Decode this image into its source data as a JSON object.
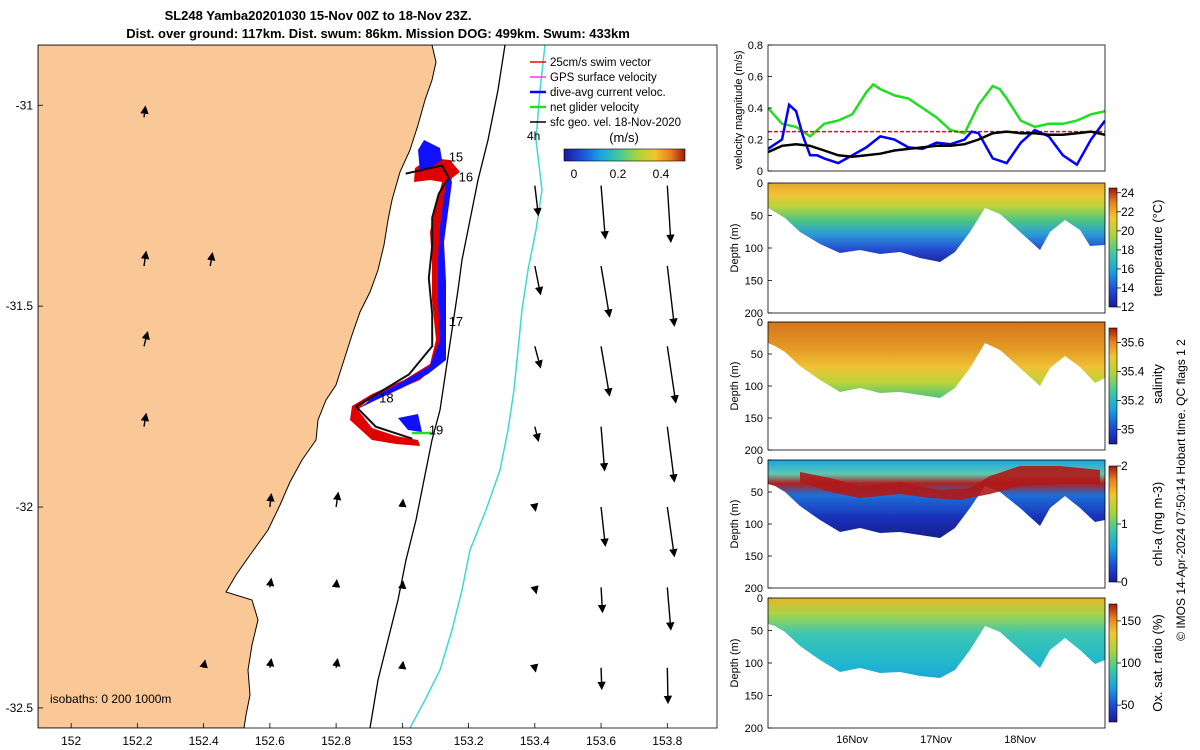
{
  "header": {
    "line1": "SL248 Yamba20201030 15-Nov 00Z to 18-Nov 23Z.",
    "line2": "Dist. over ground: 117km. Dist. swum: 86km. Mission DOG: 499km. Swum: 433km"
  },
  "credit": "© IMOS 14-Apr-2024 07:50:14 Hobart time. QC flags 1  2",
  "colors": {
    "land": "#fac896",
    "cyan_isobath": "#3dd9d9",
    "red": "#ff0000",
    "blue": "#0000ff",
    "green": "#22dd22",
    "black": "#000000"
  },
  "chart_data": [
    {
      "type": "scatter",
      "panel": "map",
      "xlim": [
        151.9,
        153.95
      ],
      "ylim": [
        -32.55,
        -30.85
      ],
      "xticks": [
        "152",
        "152.2",
        "152.4",
        "152.6",
        "152.8",
        "153",
        "153.2",
        "153.4",
        "153.6",
        "153.8"
      ],
      "yticks": [
        "-31",
        "-31.5",
        "-32",
        "-32.5"
      ],
      "legend": {
        "items": [
          "25cm/s swim vector",
          "GPS surface velocity",
          "dive-avg current veloc.",
          "net glider velocity",
          "sfc geo. vel. 18-Nov-2020"
        ],
        "extra": "4h"
      },
      "colorbar": {
        "label": "(m/s)",
        "ticks": [
          "0",
          "0.2",
          "0.4"
        ]
      },
      "day_labels": [
        {
          "text": "15",
          "x": 153.14,
          "y": -31.14
        },
        {
          "text": "16",
          "x": 153.17,
          "y": -31.19
        },
        {
          "text": "17",
          "x": 153.14,
          "y": -31.55
        },
        {
          "text": "18",
          "x": 152.93,
          "y": -31.74
        },
        {
          "text": "19",
          "x": 153.08,
          "y": -31.82
        }
      ],
      "isobath_label": "isobaths: 0   200  1000m",
      "track": [
        [
          153.01,
          -31.17
        ],
        [
          153.12,
          -31.15
        ],
        [
          153.14,
          -31.18
        ],
        [
          153.11,
          -31.22
        ],
        [
          153.09,
          -31.28
        ],
        [
          153.09,
          -31.35
        ],
        [
          153.08,
          -31.43
        ],
        [
          153.09,
          -31.52
        ],
        [
          153.09,
          -31.6
        ],
        [
          153.02,
          -31.67
        ],
        [
          152.94,
          -31.71
        ],
        [
          152.86,
          -31.75
        ],
        [
          152.92,
          -31.8
        ],
        [
          153.03,
          -31.83
        ]
      ],
      "geo_vectors": [
        {
          "x": 152.22,
          "y": -31.03,
          "u": 0.02,
          "v": 0.15
        },
        {
          "x": 153.4,
          "y": -31.2,
          "u": 0.05,
          "v": -0.42
        },
        {
          "x": 153.6,
          "y": -31.2,
          "u": 0.06,
          "v": -0.75
        },
        {
          "x": 153.8,
          "y": -31.2,
          "u": 0.05,
          "v": -0.8
        },
        {
          "x": 152.22,
          "y": -31.4,
          "u": 0.03,
          "v": 0.2
        },
        {
          "x": 152.42,
          "y": -31.4,
          "u": 0.03,
          "v": 0.18
        },
        {
          "x": 153.4,
          "y": -31.4,
          "u": 0.08,
          "v": -0.4
        },
        {
          "x": 153.6,
          "y": -31.4,
          "u": 0.12,
          "v": -0.72
        },
        {
          "x": 153.8,
          "y": -31.4,
          "u": 0.1,
          "v": -0.85
        },
        {
          "x": 152.22,
          "y": -31.6,
          "u": 0.05,
          "v": 0.2
        },
        {
          "x": 153.4,
          "y": -31.6,
          "u": 0.08,
          "v": -0.3
        },
        {
          "x": 153.6,
          "y": -31.6,
          "u": 0.12,
          "v": -0.7
        },
        {
          "x": 153.8,
          "y": -31.6,
          "u": 0.12,
          "v": -0.8
        },
        {
          "x": 152.22,
          "y": -31.8,
          "u": 0.03,
          "v": 0.18
        },
        {
          "x": 153.4,
          "y": -31.8,
          "u": 0.05,
          "v": -0.2
        },
        {
          "x": 153.6,
          "y": -31.8,
          "u": 0.05,
          "v": -0.62
        },
        {
          "x": 153.8,
          "y": -31.8,
          "u": 0.1,
          "v": -0.78
        },
        {
          "x": 152.6,
          "y": -32.0,
          "u": 0.02,
          "v": 0.18
        },
        {
          "x": 152.8,
          "y": -32.0,
          "u": 0.03,
          "v": 0.2
        },
        {
          "x": 153.0,
          "y": -32.0,
          "u": 0.01,
          "v": 0.1
        },
        {
          "x": 153.4,
          "y": -32.0,
          "u": 0.01,
          "v": -0.05
        },
        {
          "x": 153.6,
          "y": -32.0,
          "u": 0.06,
          "v": -0.55
        },
        {
          "x": 153.8,
          "y": -32.0,
          "u": 0.1,
          "v": -0.7
        },
        {
          "x": 152.6,
          "y": -32.2,
          "u": 0.02,
          "v": 0.12
        },
        {
          "x": 152.8,
          "y": -32.2,
          "u": 0.01,
          "v": 0.1
        },
        {
          "x": 153.0,
          "y": -32.2,
          "u": 0.01,
          "v": 0.08
        },
        {
          "x": 153.4,
          "y": -32.2,
          "u": 0.02,
          "v": -0.08
        },
        {
          "x": 153.6,
          "y": -32.2,
          "u": 0.02,
          "v": -0.35
        },
        {
          "x": 153.8,
          "y": -32.2,
          "u": 0.05,
          "v": -0.6
        },
        {
          "x": 152.4,
          "y": -32.4,
          "u": 0.02,
          "v": 0.1
        },
        {
          "x": 152.6,
          "y": -32.4,
          "u": 0.02,
          "v": 0.12
        },
        {
          "x": 152.8,
          "y": -32.4,
          "u": 0.02,
          "v": 0.12
        },
        {
          "x": 153.0,
          "y": -32.4,
          "u": 0.01,
          "v": 0.08
        },
        {
          "x": 153.4,
          "y": -32.4,
          "u": 0.01,
          "v": -0.05
        },
        {
          "x": 153.6,
          "y": -32.4,
          "u": 0.01,
          "v": -0.3
        },
        {
          "x": 153.8,
          "y": -32.4,
          "u": 0.01,
          "v": -0.5
        }
      ]
    },
    {
      "type": "line",
      "panel": "velocity",
      "ylabel": "velocity magnitude (m/s)",
      "ylim": [
        0,
        0.8
      ],
      "yticks": [
        "0",
        "0.2",
        "0.4",
        "0.6",
        "0.8"
      ],
      "xlim": [
        0,
        96
      ],
      "series": [
        {
          "color": "#22dd22",
          "x": [
            0,
            4,
            8,
            12,
            16,
            20,
            24,
            28,
            30,
            32,
            36,
            40,
            44,
            48,
            50,
            52,
            56,
            60,
            64,
            66,
            68,
            72,
            76,
            80,
            84,
            88,
            92,
            96
          ],
          "y": [
            0.4,
            0.3,
            0.28,
            0.22,
            0.3,
            0.32,
            0.36,
            0.5,
            0.55,
            0.52,
            0.48,
            0.46,
            0.4,
            0.34,
            0.3,
            0.26,
            0.24,
            0.42,
            0.54,
            0.52,
            0.46,
            0.32,
            0.28,
            0.3,
            0.3,
            0.32,
            0.36,
            0.38
          ]
        },
        {
          "color": "#ff0000",
          "x": [
            0,
            96
          ],
          "y": [
            0.25,
            0.25
          ]
        },
        {
          "color": "#0000ff",
          "x": [
            0,
            4,
            6,
            8,
            10,
            12,
            14,
            16,
            20,
            24,
            28,
            32,
            36,
            40,
            44,
            48,
            52,
            56,
            58,
            60,
            64,
            68,
            72,
            76,
            80,
            84,
            88,
            92,
            96
          ],
          "y": [
            0.14,
            0.2,
            0.42,
            0.38,
            0.22,
            0.1,
            0.1,
            0.08,
            0.05,
            0.1,
            0.15,
            0.22,
            0.2,
            0.15,
            0.14,
            0.18,
            0.17,
            0.2,
            0.25,
            0.24,
            0.08,
            0.05,
            0.18,
            0.26,
            0.22,
            0.1,
            0.04,
            0.2,
            0.32
          ]
        },
        {
          "color": "#000000",
          "x": [
            0,
            4,
            8,
            12,
            16,
            20,
            24,
            28,
            32,
            36,
            40,
            44,
            48,
            52,
            56,
            60,
            64,
            68,
            72,
            76,
            80,
            84,
            88,
            92,
            96
          ],
          "y": [
            0.12,
            0.16,
            0.17,
            0.16,
            0.13,
            0.1,
            0.09,
            0.1,
            0.11,
            0.13,
            0.14,
            0.15,
            0.16,
            0.16,
            0.17,
            0.2,
            0.24,
            0.25,
            0.24,
            0.24,
            0.23,
            0.23,
            0.24,
            0.25,
            0.23
          ]
        }
      ]
    },
    {
      "type": "heatmap",
      "panel": "temperature",
      "ylabel": "Depth (m)",
      "ylim": [
        0,
        200
      ],
      "yticks": [
        "0",
        "50",
        "100",
        "150",
        "200"
      ],
      "colorbar_label": "temperature (°C)",
      "colorbar_ticks": [
        "12",
        "14",
        "16",
        "18",
        "20",
        "22",
        "24"
      ],
      "clim": [
        12,
        24.5
      ]
    },
    {
      "type": "heatmap",
      "panel": "salinity",
      "ylabel": "Depth (m)",
      "ylim": [
        0,
        200
      ],
      "yticks": [
        "0",
        "50",
        "100",
        "150",
        "200"
      ],
      "colorbar_label": "salinity",
      "colorbar_ticks": [
        "35",
        "35.2",
        "35.4",
        "35.6"
      ],
      "clim": [
        34.9,
        35.7
      ]
    },
    {
      "type": "heatmap",
      "panel": "chla",
      "ylabel": "Depth (m)",
      "ylim": [
        0,
        200
      ],
      "yticks": [
        "0",
        "50",
        "100",
        "150",
        "200"
      ],
      "colorbar_label": "chl-a (mg m-3)",
      "colorbar_ticks": [
        "0",
        "1",
        "2"
      ],
      "clim": [
        0,
        2
      ]
    },
    {
      "type": "heatmap",
      "panel": "oxygen",
      "ylabel": "Depth (m)",
      "ylim": [
        0,
        200
      ],
      "yticks": [
        "0",
        "50",
        "100",
        "150",
        "200"
      ],
      "colorbar_label": "Ox. sat. ratio (%)",
      "colorbar_ticks": [
        "50",
        "100",
        "150"
      ],
      "clim": [
        30,
        170
      ],
      "xticks": [
        "16Nov",
        "17Nov",
        "18Nov"
      ]
    }
  ]
}
